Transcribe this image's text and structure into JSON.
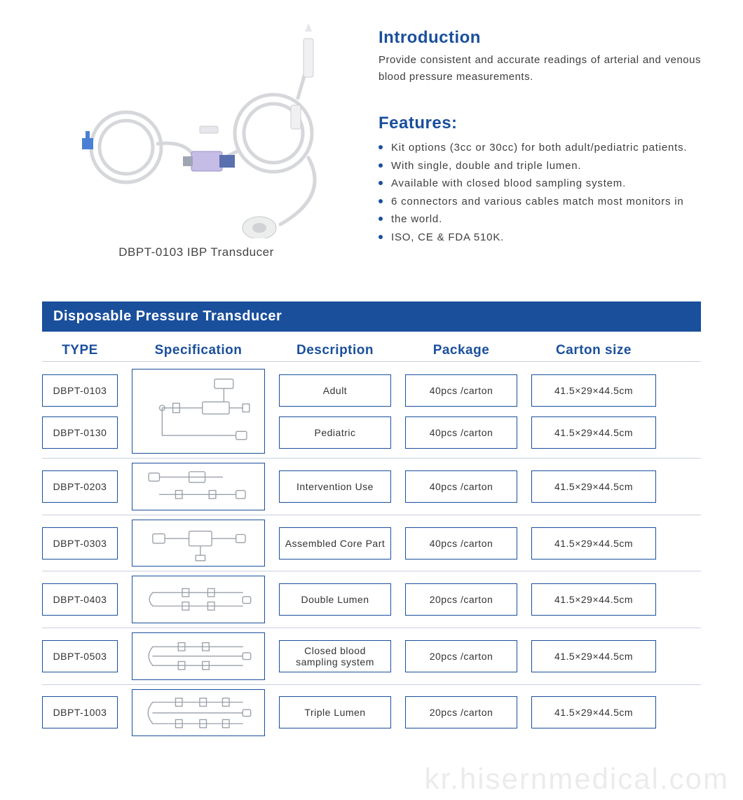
{
  "colors": {
    "brand": "#1a4f9c",
    "brandDark": "#153b73",
    "text": "#3e3e3e",
    "border": "#1a4f9c",
    "rowBorder": "#c9cfdc"
  },
  "product": {
    "caption": "DBPT-0103 IBP Transducer"
  },
  "introduction": {
    "title": "Introduction",
    "text": "Provide consistent and accurate readings of arterial and venous blood pressure measurements."
  },
  "features": {
    "title": "Features:",
    "items": [
      "Kit options (3cc or 30cc) for both adult/pediatric patients.",
      "With single, double and triple lumen.",
      "Available with closed blood sampling system.",
      "6 connectors and various cables match most monitors in",
      "the world.",
      "ISO, CE & FDA 510K."
    ]
  },
  "table": {
    "title": "Disposable Pressure Transducer",
    "columns": [
      "TYPE",
      "Specification",
      "Description",
      "Package",
      "Carton  size"
    ],
    "groups": [
      {
        "types": [
          "DBPT-0103",
          "DBPT-0130"
        ],
        "spec_kind": "single-tall",
        "rows": [
          {
            "description": "Adult",
            "package": "40pcs /carton",
            "carton": "41.5×29×44.5cm"
          },
          {
            "description": "Pediatric",
            "package": "40pcs /carton",
            "carton": "41.5×29×44.5cm"
          }
        ]
      },
      {
        "types": [
          "DBPT-0203"
        ],
        "spec_kind": "two-line",
        "rows": [
          {
            "description": "Intervention Use",
            "package": "40pcs /carton",
            "carton": "41.5×29×44.5cm"
          }
        ]
      },
      {
        "types": [
          "DBPT-0303"
        ],
        "spec_kind": "core",
        "rows": [
          {
            "description": "Assembled Core Part",
            "package": "40pcs /carton",
            "carton": "41.5×29×44.5cm"
          }
        ]
      },
      {
        "types": [
          "DBPT-0403"
        ],
        "spec_kind": "double",
        "rows": [
          {
            "description": "Double Lumen",
            "package": "20pcs /carton",
            "carton": "41.5×29×44.5cm"
          }
        ]
      },
      {
        "types": [
          "DBPT-0503"
        ],
        "spec_kind": "closed",
        "rows": [
          {
            "description": "Closed blood sampling system",
            "package": "20pcs /carton",
            "carton": "41.5×29×44.5cm"
          }
        ]
      },
      {
        "types": [
          "DBPT-1003"
        ],
        "spec_kind": "triple",
        "rows": [
          {
            "description": "Triple Lumen",
            "package": "20pcs /carton",
            "carton": "41.5×29×44.5cm"
          }
        ]
      }
    ]
  },
  "watermark": "kr.hisernmedical.com"
}
